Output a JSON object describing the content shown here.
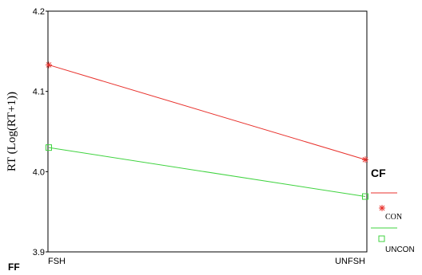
{
  "chart_data": {
    "type": "line",
    "categories": [
      "FSH",
      "UNFSH"
    ],
    "ylabel": "RT (Log(RT+1))",
    "xlabel": "FF",
    "ylim": [
      3.9,
      4.2
    ],
    "yticks": [
      3.9,
      4.0,
      4.1,
      4.2
    ],
    "ytick_labels": [
      "3.9",
      "4.0",
      "4.1",
      "4.2"
    ],
    "grid": false,
    "legend": {
      "title": "CF",
      "placement": "right"
    },
    "series": [
      {
        "name": "CON",
        "values": [
          4.133,
          4.015
        ],
        "color": "#e8312c",
        "marker": "asterisk"
      },
      {
        "name": "UNCON",
        "values": [
          4.03,
          3.969
        ],
        "color": "#3fd33f",
        "marker": "square"
      }
    ]
  }
}
